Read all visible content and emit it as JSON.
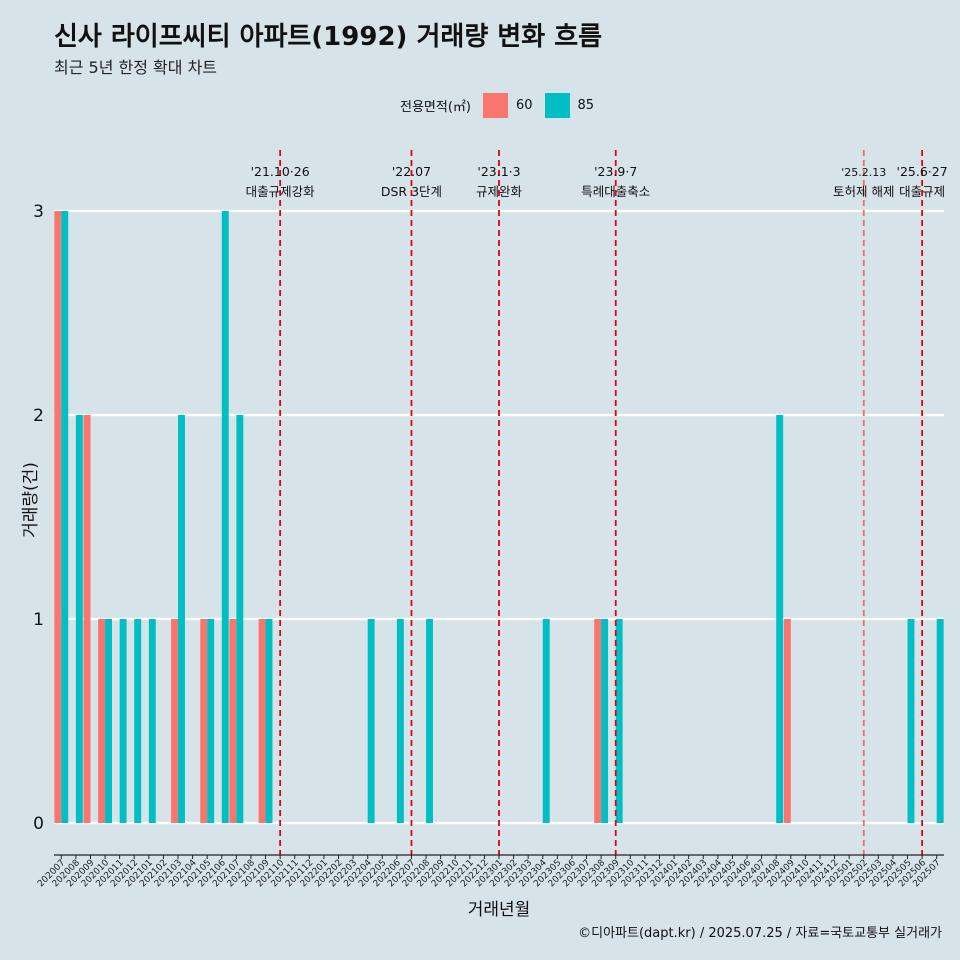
{
  "chart_data": {
    "type": "bar",
    "title": "신사 라이프씨티 아파트(1992) 거래량 변화 흐름",
    "subtitle": "최근 5년 한정 확대 차트",
    "xlabel": "거래년월",
    "ylabel": "거래량(건)",
    "caption": "©디아파트(dapt.kr) / 2025.07.25 / 자료=국토교통부 실거래가",
    "legend_title": "전용면적(㎡)",
    "legend_position": "top",
    "ylim": [
      0,
      3
    ],
    "yticks": [
      "0",
      "1",
      "2",
      "3"
    ],
    "grid": true,
    "categories": [
      "202007",
      "202008",
      "202009",
      "202010",
      "202011",
      "202012",
      "202101",
      "202102",
      "202103",
      "202104",
      "202105",
      "202106",
      "202107",
      "202108",
      "202109",
      "202110",
      "202111",
      "202112",
      "202201",
      "202202",
      "202203",
      "202204",
      "202205",
      "202206",
      "202207",
      "202208",
      "202209",
      "202210",
      "202211",
      "202212",
      "202301",
      "202302",
      "202303",
      "202304",
      "202305",
      "202306",
      "202307",
      "202308",
      "202309",
      "202310",
      "202311",
      "202312",
      "202401",
      "202402",
      "202403",
      "202404",
      "202405",
      "202406",
      "202407",
      "202408",
      "202409",
      "202410",
      "202411",
      "202412",
      "202501",
      "202502",
      "202503",
      "202504",
      "202505",
      "202506",
      "202507"
    ],
    "series": [
      {
        "name": "60",
        "color": "#f8766d",
        "values": [
          3,
          0,
          2,
          1,
          0,
          0,
          0,
          0,
          1,
          0,
          1,
          0,
          1,
          0,
          1,
          0,
          0,
          0,
          0,
          0,
          0,
          0,
          0,
          0,
          0,
          0,
          0,
          0,
          0,
          0,
          0,
          0,
          0,
          0,
          0,
          0,
          0,
          1,
          0,
          0,
          0,
          0,
          0,
          0,
          0,
          0,
          0,
          0,
          0,
          0,
          1,
          0,
          0,
          0,
          0,
          0,
          0,
          0,
          0,
          0,
          0
        ]
      },
      {
        "name": "85",
        "color": "#00bfc4",
        "values": [
          3,
          2,
          0,
          1,
          1,
          1,
          1,
          0,
          2,
          0,
          1,
          3,
          2,
          0,
          1,
          0,
          0,
          0,
          0,
          0,
          0,
          1,
          0,
          1,
          0,
          1,
          0,
          0,
          0,
          0,
          0,
          0,
          0,
          1,
          0,
          0,
          0,
          1,
          1,
          0,
          0,
          0,
          0,
          0,
          0,
          0,
          0,
          0,
          0,
          2,
          0,
          0,
          0,
          0,
          0,
          0,
          0,
          0,
          1,
          0,
          1
        ]
      }
    ],
    "events": [
      {
        "month": "202110",
        "date": "'21.10·26",
        "label": "대출규제강화",
        "color": "#e8000b"
      },
      {
        "month": "202207",
        "date": "'22.07",
        "label": "DSR 3단계",
        "color": "#e8000b"
      },
      {
        "month": "202301",
        "date": "'23.1·3",
        "label": "규제완화",
        "color": "#e8000b"
      },
      {
        "month": "202309",
        "date": "'23.9·7",
        "label": "특례대출축소",
        "color": "#e8000b"
      },
      {
        "month": "202502",
        "date": "'25.2.13",
        "label": "토허제 해제",
        "color": "#f36a6a"
      },
      {
        "month": "202506",
        "date": "'25.6·27",
        "label": "대출규제",
        "color": "#e8000b"
      }
    ]
  }
}
